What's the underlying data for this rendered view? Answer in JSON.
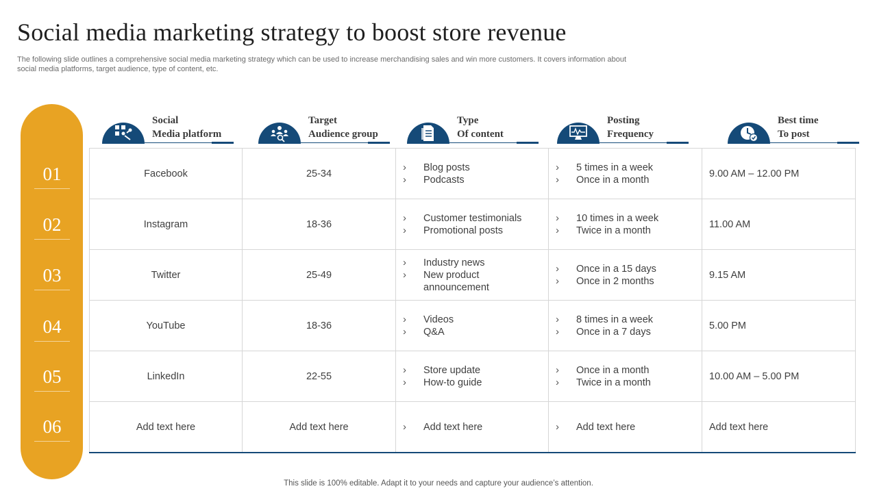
{
  "title": "Social media marketing strategy to boost store revenue",
  "subtitle": "The following slide outlines a comprehensive social media marketing strategy which can be used to increase merchandising sales and win more customers. It covers information about social media platforms, target audience, type of content, etc.",
  "row_numbers": [
    "01",
    "02",
    "03",
    "04",
    "05",
    "06"
  ],
  "headers": [
    {
      "line1": "Social",
      "line2": "Media platform",
      "icon": "social-network-icon"
    },
    {
      "line1": "Target",
      "line2": "Audience group",
      "icon": "audience-group-icon"
    },
    {
      "line1": "Type",
      "line2": "Of content",
      "icon": "document-icon"
    },
    {
      "line1": "Posting",
      "line2": "Frequency",
      "icon": "monitor-chart-icon"
    },
    {
      "line1": "Best time",
      "line2": "To post",
      "icon": "clock-icon"
    }
  ],
  "rows": [
    {
      "platform": "Facebook",
      "audience": "25-34",
      "content": [
        "Blog posts",
        "Podcasts"
      ],
      "frequency": [
        "5 times in a week",
        "Once in a month"
      ],
      "time": "9.00 AM – 12.00 PM"
    },
    {
      "platform": "Instagram",
      "audience": "18-36",
      "content": [
        "Customer testimonials",
        "Promotional posts"
      ],
      "frequency": [
        "10 times in a week",
        "Twice in a month"
      ],
      "time": "11.00 AM"
    },
    {
      "platform": "Twitter",
      "audience": "25-49",
      "content": [
        "Industry news",
        "New product announcement"
      ],
      "frequency": [
        "Once in a 15 days",
        "Once in 2 months"
      ],
      "time": "9.15 AM"
    },
    {
      "platform": "YouTube",
      "audience": "18-36",
      "content": [
        "Videos",
        "Q&A"
      ],
      "frequency": [
        "8 times in a week",
        "Once in a 7 days"
      ],
      "time": "5.00 PM"
    },
    {
      "platform": "LinkedIn",
      "audience": "22-55",
      "content": [
        "Store update",
        "How-to guide"
      ],
      "frequency": [
        "Once in a month",
        "Twice in a month"
      ],
      "time": "10.00 AM – 5.00 PM"
    },
    {
      "platform": "Add text here",
      "audience": "Add text here",
      "content": [
        "Add text here"
      ],
      "frequency": [
        "Add text here"
      ],
      "time": "Add text here"
    }
  ],
  "footer": "This slide is 100% editable. Adapt it to your needs and capture your audience’s attention.",
  "colors": {
    "accent_orange": "#e8a323",
    "navy": "#154a78"
  }
}
